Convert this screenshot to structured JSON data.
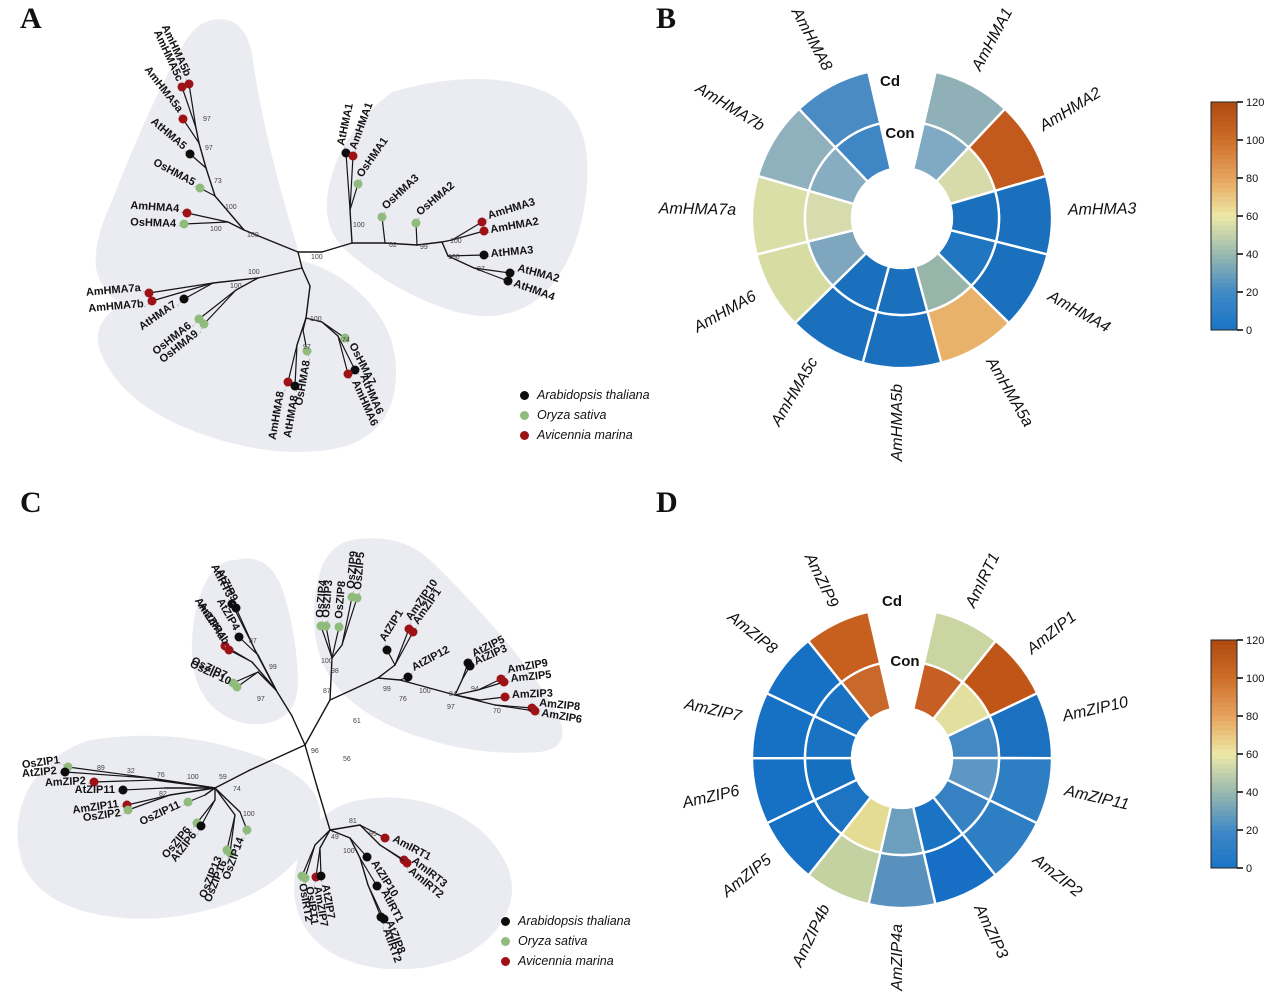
{
  "panels": {
    "A": {
      "letter": "A"
    },
    "B": {
      "letter": "B"
    },
    "C": {
      "letter": "C"
    },
    "D": {
      "letter": "D"
    }
  },
  "legend": {
    "items": [
      {
        "label": "Arabidopsis thaliana",
        "species_key": "at",
        "color": "#0d0d0d"
      },
      {
        "label": "Oryza sativa",
        "species_key": "os",
        "color": "#8fbc7d"
      },
      {
        "label": "Avicennia marina",
        "species_key": "am",
        "color": "#9c1216"
      }
    ]
  },
  "colors": {
    "blob": "#ebebf2",
    "branch": "#161616",
    "at": "#0d0d0d",
    "os": "#8fbc7d",
    "am": "#9c1216",
    "heatmap_stroke": "#ffffff",
    "gradient_stops": [
      [
        0.0,
        "#1B74C6"
      ],
      [
        0.16,
        "#3E88C6"
      ],
      [
        0.32,
        "#93B5B1"
      ],
      [
        0.5,
        "#EDE9A6"
      ],
      [
        0.66,
        "#E7A660"
      ],
      [
        0.84,
        "#CC6C29"
      ],
      [
        1.0,
        "#AE4A10"
      ]
    ]
  },
  "treeA": {
    "tips": [
      {
        "n": "AmHMA5b",
        "s": "am"
      },
      {
        "n": "AmHMA5c",
        "s": "am"
      },
      {
        "n": "AmHMA5a",
        "s": "am"
      },
      {
        "n": "AtHMA5",
        "s": "at"
      },
      {
        "n": "OsHMA5",
        "s": "os"
      },
      {
        "n": "AmHMA4",
        "s": "am"
      },
      {
        "n": "OsHMA4",
        "s": "os"
      },
      {
        "n": "AtHMA1",
        "s": "at"
      },
      {
        "n": "AmHMA1",
        "s": "am"
      },
      {
        "n": "OsHMA1",
        "s": "os"
      },
      {
        "n": "OsHMA3",
        "s": "os"
      },
      {
        "n": "OsHMA2",
        "s": "os"
      },
      {
        "n": "AmHMA3",
        "s": "am"
      },
      {
        "n": "AmHMA2",
        "s": "am"
      },
      {
        "n": "AtHMA3",
        "s": "at"
      },
      {
        "n": "AtHMA2",
        "s": "at"
      },
      {
        "n": "AtHMA4",
        "s": "at"
      },
      {
        "n": "AmHMA7a",
        "s": "am"
      },
      {
        "n": "AmHMA7b",
        "s": "am"
      },
      {
        "n": "AtHMA7",
        "s": "at"
      },
      {
        "n": "OsHMA6",
        "s": "os"
      },
      {
        "n": "OsHMA9",
        "s": "os"
      },
      {
        "n": "AmHMA8",
        "s": "am"
      },
      {
        "n": "AtHMA8",
        "s": "at"
      },
      {
        "n": "OsHMA8",
        "s": "os"
      },
      {
        "n": "OsHMA7",
        "s": "os"
      },
      {
        "n": "AtHMA6",
        "s": "at"
      },
      {
        "n": "AmHMA6",
        "s": "am"
      }
    ],
    "bootstrap_values": [
      "97",
      "97",
      "73",
      "100",
      "100",
      "100",
      "100",
      "100",
      "62",
      "99",
      "100",
      "100",
      "97",
      "100",
      "100",
      "97",
      "100",
      "74"
    ]
  },
  "treeC": {
    "tips": [
      {
        "n": "AtIRT3",
        "s": "at"
      },
      {
        "n": "AtZIP9",
        "s": "at"
      },
      {
        "n": "AtZIP4",
        "s": "at"
      },
      {
        "n": "AmZIP4a",
        "s": "am"
      },
      {
        "n": "AmZIP4b",
        "s": "am"
      },
      {
        "n": "OsZIP7",
        "s": "os"
      },
      {
        "n": "OsZIP10",
        "s": "os"
      },
      {
        "n": "OsZIP4",
        "s": "os"
      },
      {
        "n": "OsZIP3",
        "s": "os"
      },
      {
        "n": "OsZIP8",
        "s": "os"
      },
      {
        "n": "OsZIP9",
        "s": "os"
      },
      {
        "n": "OsZIP5",
        "s": "os"
      },
      {
        "n": "AtZIP1",
        "s": "at"
      },
      {
        "n": "AmZIP10",
        "s": "am"
      },
      {
        "n": "AmZIP1",
        "s": "am"
      },
      {
        "n": "AtZIP12",
        "s": "at"
      },
      {
        "n": "AtZIP5",
        "s": "at"
      },
      {
        "n": "AtZIP3",
        "s": "at"
      },
      {
        "n": "AmZIP9",
        "s": "am"
      },
      {
        "n": "AmZIP5",
        "s": "am"
      },
      {
        "n": "AmZIP3",
        "s": "am"
      },
      {
        "n": "AmZIP8",
        "s": "am"
      },
      {
        "n": "AmZIP6",
        "s": "am"
      },
      {
        "n": "OsZIP1",
        "s": "os"
      },
      {
        "n": "AtZIP2",
        "s": "at"
      },
      {
        "n": "AmZIP2",
        "s": "am"
      },
      {
        "n": "AtZIP11",
        "s": "at"
      },
      {
        "n": "AmZIP11",
        "s": "am"
      },
      {
        "n": "OsZIP2",
        "s": "os"
      },
      {
        "n": "OsZIP11",
        "s": "os"
      },
      {
        "n": "OsZIP6",
        "s": "os"
      },
      {
        "n": "AtZIP6",
        "s": "at"
      },
      {
        "n": "OsZIP13",
        "s": "os"
      },
      {
        "n": "OsZIP16",
        "s": "os"
      },
      {
        "n": "OsZIP14",
        "s": "os"
      },
      {
        "n": "OsIRT2",
        "s": "os"
      },
      {
        "n": "OsIRT1",
        "s": "os"
      },
      {
        "n": "AmZIP7",
        "s": "am"
      },
      {
        "n": "AtZIP7",
        "s": "at"
      },
      {
        "n": "AmIRT1",
        "s": "am"
      },
      {
        "n": "AmIRT3",
        "s": "am"
      },
      {
        "n": "AmIRT2",
        "s": "am"
      },
      {
        "n": "AtZIP10",
        "s": "at"
      },
      {
        "n": "AtIRT1",
        "s": "at"
      },
      {
        "n": "AtZIP8",
        "s": "at"
      },
      {
        "n": "AtIRT2",
        "s": "at"
      }
    ],
    "bootstrap_values": [
      "87",
      "99",
      "97",
      "100",
      "98",
      "87",
      "61",
      "99",
      "76",
      "100",
      "84",
      "97",
      "94",
      "70",
      "96",
      "89",
      "32",
      "76",
      "82",
      "100",
      "59",
      "74",
      "100",
      "56",
      "95",
      "100",
      "49",
      "81"
    ]
  },
  "heatmapB": {
    "ring_labels": {
      "outer": "Cd",
      "inner": "Con"
    },
    "genes": [
      {
        "name": "AmHMA1",
        "cd": "#8FB0B6",
        "con": "#80A9C3",
        "cd_value": 40,
        "con_value": 30
      },
      {
        "name": "AmHMA2",
        "cd": "#C25A1E",
        "con": "#D6DBA9",
        "cd_value": 110,
        "con_value": 56
      },
      {
        "name": "AmHMA3",
        "cd": "#1B70BE",
        "con": "#1B70BE",
        "cd_value": 5,
        "con_value": 5
      },
      {
        "name": "AmHMA4",
        "cd": "#1B70BE",
        "con": "#2076C0",
        "cd_value": 5,
        "con_value": 7
      },
      {
        "name": "AmHMA5a",
        "cd": "#E9B26B",
        "con": "#97B6A9",
        "cd_value": 80,
        "con_value": 42
      },
      {
        "name": "AmHMA5b",
        "cd": "#1B70BE",
        "con": "#1B70BE",
        "cd_value": 5,
        "con_value": 5
      },
      {
        "name": "AmHMA5c",
        "cd": "#1B70BE",
        "con": "#1B70BE",
        "cd_value": 5,
        "con_value": 5
      },
      {
        "name": "AmHMA6",
        "cd": "#D6DCA2",
        "con": "#7EA6BE",
        "cd_value": 58,
        "con_value": 30
      },
      {
        "name": "AmHMA7a",
        "cd": "#DADFA8",
        "con": "#D7DCAE",
        "cd_value": 60,
        "con_value": 57
      },
      {
        "name": "AmHMA7b",
        "cd": "#8FB0BD",
        "con": "#86ADC1",
        "cd_value": 38,
        "con_value": 34
      },
      {
        "name": "AmHMA8",
        "cd": "#4A8BC3",
        "con": "#3F86C4",
        "cd_value": 22,
        "con_value": 20
      }
    ],
    "colorbar_ticks": [
      0,
      20,
      40,
      60,
      80,
      100,
      120
    ]
  },
  "heatmapD": {
    "ring_labels": {
      "outer": "Cd",
      "inner": "Con"
    },
    "genes": [
      {
        "name": "AmIRT1",
        "cd": "#CBD5A2",
        "con": "#C75F24",
        "cd_value": 52,
        "con_value": 105
      },
      {
        "name": "AmZIP1",
        "cd": "#BF5517",
        "con": "#E3DF9E",
        "cd_value": 112,
        "con_value": 62
      },
      {
        "name": "AmZIP10",
        "cd": "#1B70C0",
        "con": "#4489C4",
        "cd_value": 5,
        "con_value": 22
      },
      {
        "name": "AmZIP11",
        "cd": "#2E7EC4",
        "con": "#5C97C6",
        "cd_value": 14,
        "con_value": 27
      },
      {
        "name": "AmZIP2",
        "cd": "#2E7EC4",
        "con": "#3781C2",
        "cd_value": 14,
        "con_value": 17
      },
      {
        "name": "AmZIP3",
        "cd": "#166FC4",
        "con": "#1B73C4",
        "cd_value": 4,
        "con_value": 6
      },
      {
        "name": "AmZIP4a",
        "cd": "#5890BE",
        "con": "#6C9FBE",
        "cd_value": 26,
        "con_value": 31
      },
      {
        "name": "AmZIP4b",
        "cd": "#C3D2A0",
        "con": "#E5DC94",
        "cd_value": 50,
        "con_value": 63
      },
      {
        "name": "AmZIP5",
        "cd": "#1670C4",
        "con": "#1D74C2",
        "cd_value": 4,
        "con_value": 7
      },
      {
        "name": "AmZIP6",
        "cd": "#1670C4",
        "con": "#1670C0",
        "cd_value": 4,
        "con_value": 4
      },
      {
        "name": "AmZIP7",
        "cd": "#1670C4",
        "con": "#1A72C2",
        "cd_value": 4,
        "con_value": 5
      },
      {
        "name": "AmZIP8",
        "cd": "#1670C4",
        "con": "#1A72C2",
        "cd_value": 4,
        "con_value": 5
      },
      {
        "name": "AmZIP9",
        "cd": "#C7601F",
        "con": "#C8682A",
        "cd_value": 106,
        "con_value": 100
      }
    ],
    "colorbar_ticks": [
      0,
      20,
      40,
      60,
      80,
      100,
      120
    ]
  },
  "chart_data": [
    {
      "panel": "A",
      "type": "phylogenetic_tree_unrooted",
      "species_legend": [
        "Arabidopsis thaliana",
        "Oryza sativa",
        "Avicennia marina"
      ],
      "tips": [
        "AmHMA5b",
        "AmHMA5c",
        "AmHMA5a",
        "AtHMA5",
        "OsHMA5",
        "AmHMA4",
        "OsHMA4",
        "AtHMA1",
        "AmHMA1",
        "OsHMA1",
        "OsHMA3",
        "OsHMA2",
        "AmHMA3",
        "AmHMA2",
        "AtHMA3",
        "AtHMA2",
        "AtHMA4",
        "AmHMA7a",
        "AmHMA7b",
        "AtHMA7",
        "OsHMA6",
        "OsHMA9",
        "AmHMA8",
        "AtHMA8",
        "OsHMA8",
        "OsHMA7",
        "AtHMA6",
        "AmHMA6"
      ]
    },
    {
      "panel": "B",
      "type": "heatmap",
      "subtype": "circular-two-ring",
      "rings": [
        "Cd",
        "Con"
      ],
      "categories": [
        "AmHMA1",
        "AmHMA2",
        "AmHMA3",
        "AmHMA4",
        "AmHMA5a",
        "AmHMA5b",
        "AmHMA5c",
        "AmHMA6",
        "AmHMA7a",
        "AmHMA7b",
        "AmHMA8"
      ],
      "series": [
        {
          "name": "Cd",
          "values": [
            40,
            110,
            5,
            5,
            80,
            5,
            5,
            58,
            60,
            38,
            22
          ]
        },
        {
          "name": "Con",
          "values": [
            30,
            56,
            5,
            7,
            42,
            5,
            5,
            30,
            57,
            34,
            20
          ]
        }
      ],
      "scale_min": 0,
      "scale_max": 120,
      "colorbar_ticks": [
        0,
        20,
        40,
        60,
        80,
        100,
        120
      ],
      "legend_position": "right-colorbar"
    },
    {
      "panel": "C",
      "type": "phylogenetic_tree_unrooted",
      "species_legend": [
        "Arabidopsis thaliana",
        "Oryza sativa",
        "Avicennia marina"
      ],
      "tips": [
        "AtIRT3",
        "AtZIP9",
        "AtZIP4",
        "AmZIP4a",
        "AmZIP4b",
        "OsZIP7",
        "OsZIP10",
        "OsZIP4",
        "OsZIP3",
        "OsZIP8",
        "OsZIP9",
        "OsZIP5",
        "AtZIP1",
        "AmZIP10",
        "AmZIP1",
        "AtZIP12",
        "AtZIP5",
        "AtZIP3",
        "AmZIP9",
        "AmZIP5",
        "AmZIP3",
        "AmZIP8",
        "AmZIP6",
        "OsZIP1",
        "AtZIP2",
        "AmZIP2",
        "AtZIP11",
        "AmZIP11",
        "OsZIP2",
        "OsZIP11",
        "OsZIP6",
        "AtZIP6",
        "OsZIP13",
        "OsZIP16",
        "OsZIP14",
        "OsIRT2",
        "OsIRT1",
        "AmZIP7",
        "AtZIP7",
        "AmIRT1",
        "AmIRT3",
        "AmIRT2",
        "AtZIP10",
        "AtIRT1",
        "AtZIP8",
        "AtIRT2"
      ]
    },
    {
      "panel": "D",
      "type": "heatmap",
      "subtype": "circular-two-ring",
      "rings": [
        "Cd",
        "Con"
      ],
      "categories": [
        "AmIRT1",
        "AmZIP1",
        "AmZIP10",
        "AmZIP11",
        "AmZIP2",
        "AmZIP3",
        "AmZIP4a",
        "AmZIP4b",
        "AmZIP5",
        "AmZIP6",
        "AmZIP7",
        "AmZIP8",
        "AmZIP9"
      ],
      "series": [
        {
          "name": "Cd",
          "values": [
            52,
            112,
            5,
            14,
            14,
            4,
            26,
            50,
            4,
            4,
            4,
            4,
            106
          ]
        },
        {
          "name": "Con",
          "values": [
            105,
            62,
            22,
            27,
            17,
            6,
            31,
            63,
            7,
            4,
            5,
            5,
            100
          ]
        }
      ],
      "scale_min": 0,
      "scale_max": 120,
      "colorbar_ticks": [
        0,
        20,
        40,
        60,
        80,
        100,
        120
      ],
      "legend_position": "right-colorbar"
    }
  ]
}
